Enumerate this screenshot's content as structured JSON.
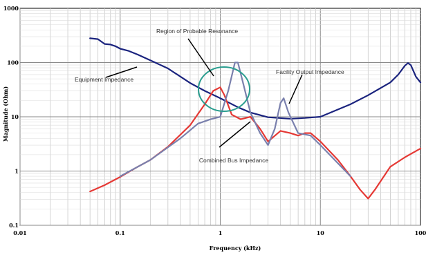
{
  "chart_data": {
    "type": "line",
    "xlabel": "Frequency (kHz)",
    "ylabel": "Magnitude (Ohm)",
    "x_scale": "log",
    "y_scale": "log",
    "xlim": [
      0.01,
      100
    ],
    "ylim": [
      0.1,
      1000
    ],
    "x_ticks": [
      "0.01",
      "0.1",
      "1",
      "10",
      "100"
    ],
    "y_ticks": [
      "0.1",
      "1",
      "10",
      "100",
      "1000"
    ],
    "grid": true,
    "annotations": [
      "Region of Probable Resonance",
      "Equipment Impedance",
      "Facility Output Impedance",
      "Combined Bus Impedance"
    ],
    "series": [
      {
        "color": "#1a237e",
        "points": [
          [
            0.05,
            280
          ],
          [
            0.06,
            270
          ],
          [
            0.07,
            220
          ],
          [
            0.08,
            215
          ],
          [
            0.09,
            200
          ],
          [
            0.1,
            180
          ],
          [
            0.12,
            165
          ],
          [
            0.15,
            140
          ],
          [
            0.2,
            110
          ],
          [
            0.3,
            78
          ],
          [
            0.5,
            42
          ],
          [
            0.7,
            30
          ],
          [
            1,
            22
          ],
          [
            1.5,
            15
          ],
          [
            2,
            12
          ],
          [
            3,
            9.8
          ],
          [
            5,
            9.2
          ],
          [
            7,
            9.5
          ],
          [
            10,
            10
          ],
          [
            20,
            17
          ],
          [
            30,
            25
          ],
          [
            50,
            43
          ],
          [
            60,
            60
          ],
          [
            70,
            88
          ],
          [
            75,
            98
          ],
          [
            80,
            90
          ],
          [
            90,
            55
          ],
          [
            100,
            43
          ]
        ]
      },
      {
        "color": "#e53935",
        "points": [
          [
            0.05,
            0.42
          ],
          [
            0.07,
            0.55
          ],
          [
            0.1,
            0.78
          ],
          [
            0.15,
            1.2
          ],
          [
            0.2,
            1.6
          ],
          [
            0.3,
            2.8
          ],
          [
            0.5,
            7
          ],
          [
            0.7,
            17
          ],
          [
            0.85,
            30
          ],
          [
            1,
            35
          ],
          [
            1.1,
            25
          ],
          [
            1.3,
            11
          ],
          [
            1.6,
            9
          ],
          [
            2,
            10
          ],
          [
            2.5,
            6
          ],
          [
            3,
            3.5
          ],
          [
            4,
            5.5
          ],
          [
            5,
            5
          ],
          [
            6,
            4.5
          ],
          [
            7,
            5
          ],
          [
            8,
            5
          ],
          [
            10,
            3.5
          ],
          [
            15,
            1.6
          ],
          [
            20,
            0.8
          ],
          [
            25,
            0.45
          ],
          [
            30,
            0.31
          ],
          [
            35,
            0.45
          ],
          [
            50,
            1.2
          ],
          [
            70,
            1.8
          ],
          [
            100,
            2.6
          ]
        ]
      },
      {
        "color": "#7a80ad",
        "points": [
          [
            0.1,
            0.8
          ],
          [
            0.2,
            1.6
          ],
          [
            0.4,
            4
          ],
          [
            0.6,
            7.5
          ],
          [
            0.8,
            9
          ],
          [
            1,
            10
          ],
          [
            1.2,
            30
          ],
          [
            1.4,
            100
          ],
          [
            1.5,
            100
          ],
          [
            1.7,
            40
          ],
          [
            2,
            12
          ],
          [
            2.5,
            5
          ],
          [
            3,
            3
          ],
          [
            3.5,
            6
          ],
          [
            4,
            18
          ],
          [
            4.3,
            22
          ],
          [
            4.8,
            12
          ],
          [
            6,
            5
          ],
          [
            8,
            4.5
          ],
          [
            10,
            3
          ],
          [
            20,
            0.8
          ]
        ]
      }
    ]
  }
}
